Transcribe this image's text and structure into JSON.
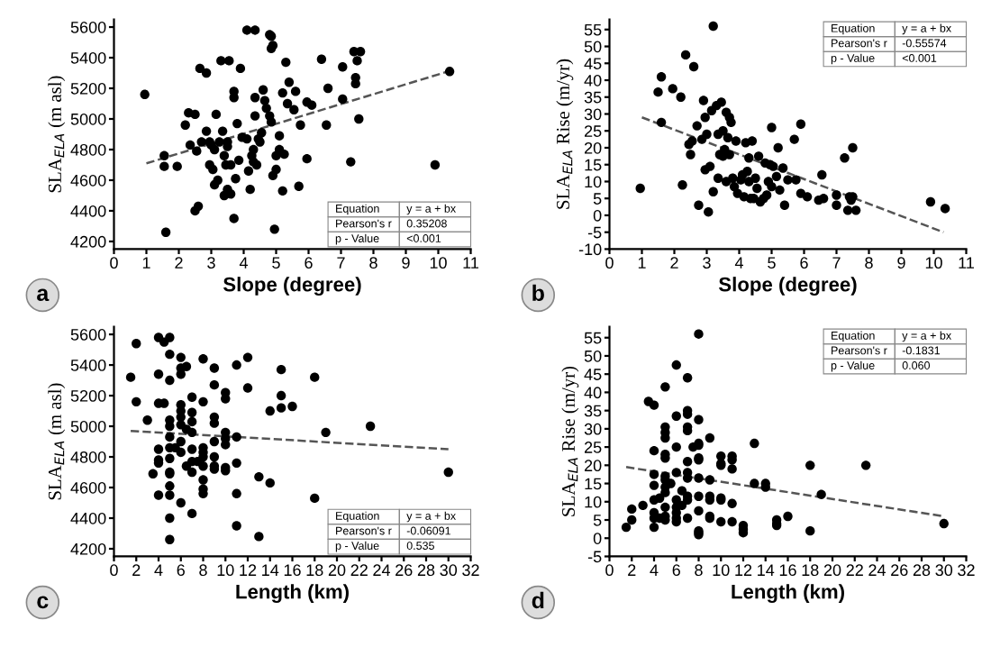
{
  "chart_data": [
    {
      "type": "scatter",
      "xlabel": "Slope (degree)",
      "ylabel": "SLA$_{ELA}$ (m asl)",
      "marker": "circle",
      "xlim": [
        0,
        11
      ],
      "xticks": [
        0,
        1,
        2,
        3,
        4,
        5,
        6,
        7,
        8,
        9,
        10,
        11
      ],
      "ylim": [
        4150,
        5650
      ],
      "yticks": [
        4200,
        4400,
        4600,
        4800,
        5000,
        5200,
        5400,
        5600
      ],
      "annotations": [
        "a",
        "Equation",
        "y = a + bx",
        "Pearson's r",
        "0.35208",
        "p - Value",
        "<0.001"
      ],
      "series": [
        {
          "color": "#000000",
          "x": [
            0.95,
            1.55,
            1.55,
            1.95,
            1.6,
            2.2,
            2.3,
            2.5,
            2.35,
            2.55,
            2.5,
            2.6,
            2.65,
            2.85,
            2.7,
            2.85,
            2.95,
            2.95,
            3.0,
            3.05,
            3.1,
            3.1,
            3.15,
            3.2,
            3.25,
            3.3,
            3.35,
            3.4,
            3.4,
            3.45,
            3.5,
            3.5,
            3.5,
            3.55,
            3.6,
            3.6,
            3.7,
            3.7,
            3.7,
            3.75,
            3.8,
            3.85,
            3.9,
            3.95,
            4.1,
            4.1,
            4.15,
            4.2,
            4.25,
            4.3,
            4.3,
            4.35,
            4.35,
            4.35,
            4.4,
            4.45,
            4.5,
            4.55,
            4.6,
            4.65,
            4.7,
            4.8,
            4.8,
            4.85,
            4.85,
            4.85,
            4.9,
            4.9,
            4.95,
            5.0,
            5.0,
            5.1,
            5.1,
            5.2,
            5.2,
            5.25,
            5.3,
            5.35,
            5.4,
            5.55,
            5.6,
            5.7,
            5.75,
            5.95,
            5.95,
            6.1,
            6.4,
            6.55,
            6.6,
            7.05,
            7.05,
            7.3,
            7.4,
            7.45,
            7.45,
            7.5,
            7.55,
            7.6,
            9.9,
            10.35
          ],
          "values": [
            5160,
            4760,
            4690,
            4690,
            4260,
            4960,
            5040,
            5030,
            4830,
            4790,
            4400,
            4430,
            5330,
            5300,
            4850,
            4920,
            4850,
            4700,
            4830,
            4670,
            4800,
            4570,
            5030,
            4600,
            4850,
            5380,
            4920,
            4760,
            4500,
            4700,
            4850,
            4820,
            4540,
            5380,
            4700,
            4510,
            5180,
            5140,
            4350,
            4610,
            4970,
            4730,
            5330,
            4880,
            5580,
            4870,
            4660,
            4540,
            4760,
            4800,
            4720,
            5580,
            5020,
            5140,
            4700,
            4870,
            4850,
            4910,
            5190,
            5120,
            5070,
            5550,
            5020,
            5540,
            5460,
            4980,
            5480,
            4630,
            4280,
            4670,
            4760,
            4890,
            4800,
            5170,
            4530,
            4770,
            5370,
            5100,
            5240,
            5060,
            5180,
            4560,
            4960,
            5110,
            4740,
            5090,
            5390,
            4960,
            5200,
            5340,
            5130,
            4720,
            5440,
            5270,
            5230,
            5380,
            5000,
            5440,
            4700,
            5310
          ]
        },
        {
          "type": "line",
          "color": "#555555",
          "line_style": "dashed",
          "marker": "none",
          "x": [
            1,
            10.3
          ],
          "values": [
            4710,
            5310
          ]
        }
      ]
    },
    {
      "type": "scatter",
      "xlabel": "Slope (degree)",
      "ylabel": "SLA$_{ELA}$ Rise (m/yr)",
      "marker": "circle",
      "xlim": [
        0,
        11
      ],
      "xticks": [
        0,
        1,
        2,
        3,
        4,
        5,
        6,
        7,
        8,
        9,
        10,
        11
      ],
      "ylim": [
        -10,
        58
      ],
      "yticks": [
        -10,
        -5,
        0,
        5,
        10,
        15,
        20,
        25,
        30,
        35,
        40,
        45,
        50,
        55
      ],
      "annotations": [
        "b",
        "Equation",
        "y = a + bx",
        "Pearson's r",
        "-0.55574",
        "p - Value",
        "<0.001"
      ],
      "series": [
        {
          "color": "#000000",
          "x": [
            0.95,
            1.5,
            1.6,
            1.6,
            1.95,
            2.2,
            2.25,
            2.35,
            2.45,
            2.5,
            2.55,
            2.6,
            2.7,
            2.75,
            2.85,
            2.9,
            2.95,
            2.95,
            3.0,
            3.05,
            3.1,
            3.15,
            3.2,
            3.2,
            3.3,
            3.35,
            3.35,
            3.4,
            3.45,
            3.5,
            3.5,
            3.55,
            3.6,
            3.6,
            3.65,
            3.7,
            3.7,
            3.75,
            3.8,
            3.85,
            3.9,
            3.95,
            4.05,
            4.1,
            4.15,
            4.2,
            4.25,
            4.3,
            4.3,
            4.35,
            4.4,
            4.45,
            4.5,
            4.55,
            4.6,
            4.65,
            4.75,
            4.8,
            4.85,
            4.9,
            4.95,
            5.0,
            5.0,
            5.05,
            5.15,
            5.2,
            5.25,
            5.35,
            5.4,
            5.5,
            5.7,
            5.75,
            5.9,
            5.9,
            6.1,
            6.45,
            6.55,
            6.6,
            7.0,
            7.0,
            7.25,
            7.35,
            7.4,
            7.45,
            7.5,
            7.5,
            7.6,
            9.9,
            10.35
          ],
          "values": [
            8,
            36.5,
            41,
            27.5,
            37.5,
            35,
            9,
            47.5,
            21,
            18,
            22,
            44,
            26.5,
            3,
            22.5,
            34,
            13.5,
            29,
            24,
            1,
            14.5,
            31,
            56,
            7,
            32.5,
            11,
            24,
            18,
            33.5,
            25,
            17.5,
            19.5,
            10,
            30.5,
            23,
            18,
            29,
            27.5,
            11,
            8.5,
            22,
            6.5,
            10.5,
            12,
            5.5,
            21.5,
            13,
            17,
            10,
            5,
            22,
            5,
            11,
            8,
            17.5,
            4,
            5,
            15.5,
            6,
            10,
            15,
            26,
            8.5,
            14.5,
            11.5,
            20,
            7.5,
            14,
            3,
            10.5,
            22.5,
            10.5,
            27,
            6.5,
            5.5,
            4.5,
            12,
            5,
            6,
            3,
            17,
            1.5,
            5.5,
            4.5,
            20,
            5.5,
            1.5,
            4,
            2
          ]
        },
        {
          "type": "line",
          "color": "#555555",
          "line_style": "dashed",
          "marker": "none",
          "x": [
            1,
            10.3
          ],
          "values": [
            29,
            -5
          ]
        }
      ]
    },
    {
      "type": "scatter",
      "xlabel": "Length (km)",
      "ylabel": "SLA$_{ELA}$ (m asl)",
      "marker": "circle",
      "xlim": [
        0,
        32
      ],
      "xticks": [
        0,
        2,
        4,
        6,
        8,
        10,
        12,
        14,
        16,
        18,
        20,
        22,
        24,
        26,
        28,
        30,
        32
      ],
      "ylim": [
        4150,
        5650
      ],
      "yticks": [
        4200,
        4400,
        4600,
        4800,
        5000,
        5200,
        5400,
        5600
      ],
      "annotations": [
        "c",
        "Equation",
        "y = a + bx",
        "Pearson's r",
        "-0.06091",
        "p - Value",
        "0.535"
      ],
      "series": [
        {
          "color": "#000000",
          "x": [
            1.5,
            2,
            2,
            3,
            3.5,
            4,
            4,
            4,
            4,
            4,
            4,
            4,
            4.5,
            4.5,
            5,
            5,
            5,
            5,
            5,
            5,
            5,
            5,
            5,
            5,
            5,
            5,
            5,
            5,
            5.5,
            6,
            6,
            6,
            6,
            6,
            6,
            6,
            6,
            6,
            6,
            6.5,
            6.5,
            6.5,
            7,
            7,
            7,
            7,
            7,
            7,
            7,
            7,
            7.5,
            8,
            8,
            8,
            8,
            8,
            8,
            8,
            8,
            8,
            9,
            9,
            9,
            9,
            9,
            9,
            9,
            9,
            10,
            10,
            10,
            10,
            10,
            10,
            10,
            11,
            11,
            11,
            11,
            11,
            12,
            12,
            13,
            13,
            14,
            14,
            15,
            15,
            15,
            16,
            18,
            18,
            19,
            23,
            30
          ],
          "values": [
            5320,
            5540,
            5160,
            5040,
            4690,
            5580,
            5340,
            5150,
            4850,
            4780,
            4760,
            4550,
            5550,
            5150,
            5580,
            5470,
            5300,
            5040,
            5000,
            4930,
            4860,
            4790,
            4700,
            4690,
            4610,
            4550,
            4400,
            4260,
            4860,
            5450,
            5380,
            5340,
            5140,
            5100,
            5060,
            5010,
            4900,
            4830,
            4500,
            5390,
            4980,
            4740,
            5190,
            5090,
            5030,
            4960,
            4850,
            4770,
            4700,
            4430,
            4770,
            5440,
            5160,
            4860,
            4830,
            4800,
            4740,
            4650,
            4590,
            4560,
            5380,
            5270,
            5060,
            5020,
            4900,
            4800,
            4740,
            4720,
            5220,
            5180,
            4960,
            4920,
            4880,
            4730,
            4710,
            5400,
            4930,
            4760,
            4560,
            4350,
            5450,
            5250,
            4670,
            4280,
            5100,
            4630,
            5370,
            5200,
            5120,
            5130,
            5320,
            4530,
            4960,
            5000,
            4700
          ]
        },
        {
          "type": "line",
          "color": "#555555",
          "line_style": "dashed",
          "marker": "none",
          "x": [
            1.5,
            30
          ],
          "values": [
            4970,
            4850
          ]
        }
      ]
    },
    {
      "type": "scatter",
      "xlabel": "Length (km)",
      "ylabel": "SLA$_{ELA}$ Rise (m/yr)",
      "marker": "circle",
      "xlim": [
        0,
        32
      ],
      "xticks": [
        0,
        2,
        4,
        6,
        8,
        10,
        12,
        14,
        16,
        18,
        20,
        22,
        24,
        26,
        28,
        30,
        32
      ],
      "ylim": [
        -5,
        58
      ],
      "yticks": [
        -5,
        0,
        5,
        10,
        15,
        20,
        25,
        30,
        35,
        40,
        45,
        50,
        55
      ],
      "annotations": [
        "d",
        "Equation",
        "y = a + bx",
        "Pearson's r",
        "-0.1831",
        "p - Value",
        "0.060"
      ],
      "series": [
        {
          "color": "#000000",
          "x": [
            1.5,
            2,
            2,
            3,
            3.5,
            4,
            4,
            4,
            4,
            4,
            4,
            4,
            4,
            4.5,
            4.5,
            5,
            5,
            5,
            5,
            5,
            5,
            5,
            5,
            5,
            5,
            5,
            5,
            5,
            5.5,
            6,
            6,
            6,
            6,
            6,
            6,
            6,
            6,
            6,
            6.5,
            6.5,
            7,
            7,
            7,
            7,
            7,
            7,
            7,
            7,
            7,
            7,
            7,
            7.5,
            8,
            8,
            8,
            8,
            8,
            8,
            8,
            8,
            8,
            8,
            8,
            8,
            9,
            9,
            9,
            9,
            9,
            9,
            10,
            10,
            10,
            10,
            10,
            10,
            11,
            11,
            11,
            11,
            11,
            12,
            12,
            12,
            13,
            13,
            14,
            14,
            15,
            15,
            15,
            16,
            18,
            18,
            19,
            23,
            30
          ],
          "values": [
            3,
            5,
            8,
            9,
            37.5,
            36.5,
            24,
            17.5,
            14.5,
            10.5,
            7,
            5.5,
            3,
            11,
            5.5,
            41.5,
            30.5,
            29,
            27.5,
            23,
            22,
            17,
            16,
            14,
            12.5,
            8.5,
            6,
            5,
            15,
            47.5,
            33.5,
            25,
            18,
            10.5,
            8.5,
            7,
            5.5,
            4.5,
            13,
            9,
            44,
            35,
            34,
            30.5,
            29.5,
            21,
            18,
            16.5,
            11.5,
            10.5,
            5.5,
            25,
            56,
            32.5,
            26,
            25.5,
            22,
            21.5,
            16.5,
            11.5,
            7.5,
            2,
            1.5,
            1,
            27.5,
            16,
            11.5,
            10.5,
            6,
            5.5,
            22.5,
            20.5,
            20,
            11,
            10.5,
            4.5,
            22.5,
            21.5,
            19,
            9.5,
            4.5,
            3.5,
            2.5,
            1.5,
            26,
            15,
            15,
            14,
            5,
            4,
            3.5,
            6,
            20,
            2,
            12,
            20,
            4
          ]
        },
        {
          "type": "line",
          "color": "#555555",
          "line_style": "dashed",
          "marker": "none",
          "x": [
            1.5,
            30
          ],
          "values": [
            19.5,
            6
          ]
        }
      ]
    }
  ]
}
